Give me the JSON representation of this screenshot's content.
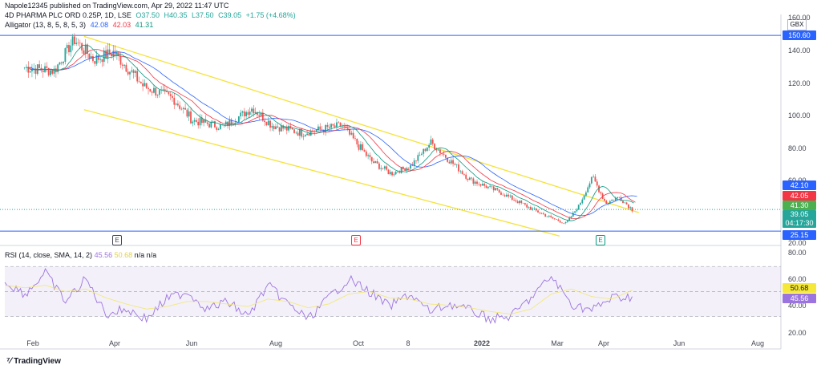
{
  "header": {
    "text": "Napole12345 published on TradingView.com, Apr 29, 2022 11:47 UTC"
  },
  "symbol_line": {
    "name": "4D PHARMA PLC ORD 0.25P, 1D, LSE",
    "o": "O37.50",
    "h": "H40.35",
    "l": "L37.50",
    "c": "C39.05",
    "change": "+1.75 (+4.68%)"
  },
  "alligator": {
    "label": "Alligator (13, 8, 5, 8, 5, 3)",
    "jaw": "42.08",
    "teeth": "42.03",
    "lips": "41.31",
    "jaw_color": "#2962ff",
    "teeth_color": "#f23645",
    "lips_color": "#089981"
  },
  "rsi_legend": {
    "label": "RSI (14, close, SMA, 14, 2)",
    "rsi": "45.56",
    "ma": "50.68",
    "na": "n/a n/a",
    "rsi_color": "#9c74e0",
    "ma_color": "#f2e86d"
  },
  "currency": "GBX",
  "price_tags": {
    "top_line": "150.60",
    "jaw": "42.10",
    "teeth": "42.05",
    "lips": "41.30",
    "last": "39.05",
    "countdown": "04:17:30",
    "bottom_line": "25.15",
    "rsi_ma": "50.68",
    "rsi": "45.56"
  },
  "footer": {
    "brand": "TradingView"
  },
  "earnings_badge": "E",
  "chart_data": [
    {
      "type": "candlestick",
      "title": "4D PHARMA PLC ORD 0.25P, 1D, LSE",
      "x_ticks": [
        "Feb",
        "Apr",
        "Jun",
        "Aug",
        "Oct",
        "8",
        "2022",
        "Mar",
        "Apr",
        "Jun",
        "Aug"
      ],
      "y_ticks": [
        20,
        40,
        60,
        80,
        100,
        120,
        140,
        160
      ],
      "ylim": [
        18,
        162
      ],
      "horizontal_lines": [
        150.6,
        25.15
      ],
      "channel": {
        "upper": [
          [
            "Mar 2021",
            150
          ],
          [
            "May 2022",
            37
          ]
        ],
        "lower": [
          [
            "Mar 2021",
            103
          ],
          [
            "Mar 2022",
            22
          ]
        ]
      },
      "approx_close_path": [
        [
          "Jan 2021",
          130
        ],
        [
          "Feb 2021",
          128
        ],
        [
          "Feb 2021",
          148
        ],
        [
          "Mar 2021",
          135
        ],
        [
          "Mar 2021",
          140
        ],
        [
          "Apr 2021",
          118
        ],
        [
          "May 2021",
          110
        ],
        [
          "May 2021",
          96
        ],
        [
          "Jun 2021",
          92
        ],
        [
          "Jul 2021",
          104
        ],
        [
          "Jul 2021",
          93
        ],
        [
          "Aug 2021",
          88
        ],
        [
          "Sep 2021",
          93
        ],
        [
          "Oct 2021",
          70
        ],
        [
          "Oct 2021",
          62
        ],
        [
          "Nov 2021",
          67
        ],
        [
          "Nov 2021",
          82
        ],
        [
          "Dec 2021",
          70
        ],
        [
          "Dec 2021",
          58
        ],
        [
          "Jan 2022",
          50
        ],
        [
          "Feb 2022",
          40
        ],
        [
          "Feb 2022",
          34
        ],
        [
          "Mar 2022",
          30
        ],
        [
          "Mar 2022",
          42
        ],
        [
          "Mar 2022",
          60
        ],
        [
          "Apr 2022",
          43
        ],
        [
          "Apr 2022",
          47
        ],
        [
          "Apr 2022",
          39
        ]
      ],
      "last_price": 39.05
    },
    {
      "type": "line",
      "title": "RSI (14, close, SMA, 14, 2)",
      "y_ticks": [
        20,
        40,
        60,
        80
      ],
      "ylim": [
        15,
        83
      ],
      "bands": [
        70,
        50,
        30
      ],
      "series": [
        {
          "name": "RSI",
          "values": [
            58,
            48,
            65,
            42,
            60,
            32,
            36,
            28,
            44,
            50,
            36,
            42,
            30,
            55,
            40,
            28,
            45,
            60,
            50,
            38,
            48,
            34,
            40,
            35,
            28,
            30,
            45,
            62,
            40,
            35,
            45,
            46
          ]
        },
        {
          "name": "MA",
          "values": [
            55,
            53,
            55,
            50,
            52,
            45,
            40,
            36,
            38,
            42,
            42,
            40,
            38,
            44,
            42,
            37,
            40,
            48,
            50,
            45,
            44,
            40,
            39,
            37,
            34,
            32,
            36,
            48,
            52,
            46,
            44,
            51
          ]
        }
      ]
    }
  ]
}
